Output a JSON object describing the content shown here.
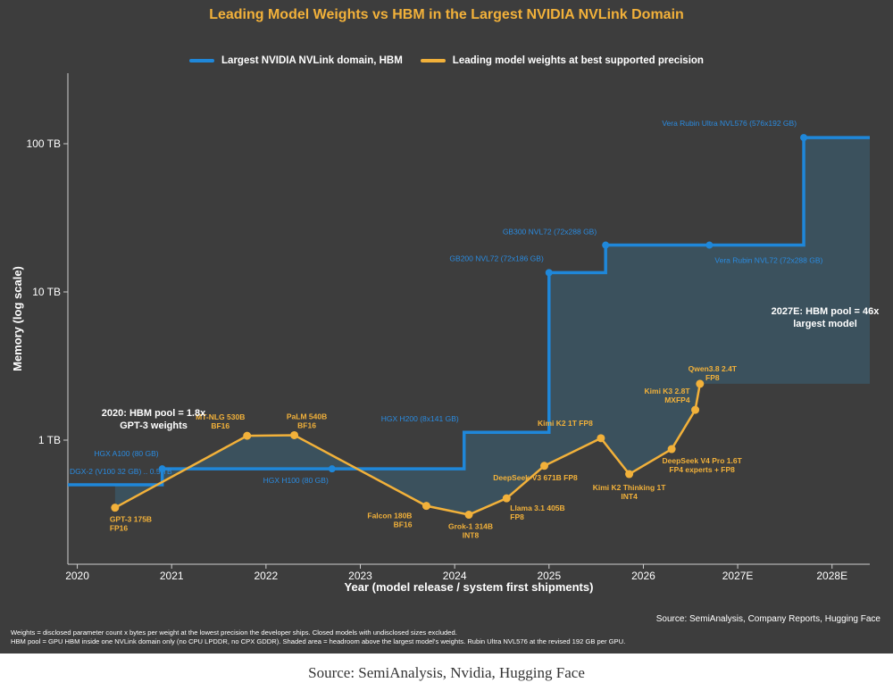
{
  "chart_data": {
    "type": "line",
    "title": "Leading Model Weights vs HBM in the Largest NVIDIA NVLink Domain",
    "xlabel": "Year (model release / system first shipments)",
    "ylabel": "Memory (log scale)",
    "scale": "log",
    "xlim": [
      2019.9,
      2028.4
    ],
    "ylim_tb": [
      0.16,
      300
    ],
    "x_ticks": [
      "2020",
      "2021",
      "2022",
      "2023",
      "2024",
      "2025",
      "2026",
      "2027E",
      "2028E"
    ],
    "y_ticks": [
      {
        "label": "100 TB",
        "value_tb": 100
      },
      {
        "label": "10 TB",
        "value_tb": 10
      },
      {
        "label": "1 TB",
        "value_tb": 1
      }
    ],
    "grid": false,
    "legend_position": "top",
    "series": [
      {
        "name": "Largest NVIDIA NVLink domain, HBM",
        "color": "#1f87d9",
        "type": "step",
        "points": [
          {
            "x": 2019.9,
            "y_tb": 0.5,
            "label": "DGX-2 (V100 32 GB) .. 0.5 TB",
            "marker": false
          },
          {
            "x": 2020.9,
            "y_tb": 0.64,
            "label": "HGX A100 (80 GB)",
            "marker": true
          },
          {
            "x": 2022.7,
            "y_tb": 0.64,
            "label": "HGX H100 (80 GB)",
            "marker": true
          },
          {
            "x": 2024.1,
            "y_tb": 1.13,
            "label": "HGX H200 (8x141 GB)",
            "marker": false
          },
          {
            "x": 2025.0,
            "y_tb": 13.5,
            "label": "GB200 NVL72 (72x186 GB)",
            "marker": true
          },
          {
            "x": 2025.6,
            "y_tb": 20.7,
            "label": "GB300 NVL72 (72x288 GB)",
            "marker": true
          },
          {
            "x": 2026.7,
            "y_tb": 20.7,
            "label": "Vera Rubin NVL72 (72x288 GB)",
            "marker": true
          },
          {
            "x": 2027.7,
            "y_tb": 110,
            "label": "Vera Rubin Ultra NVL576 (576x192 GB)",
            "marker": true
          },
          {
            "x": 2028.4,
            "y_tb": 110,
            "label": "",
            "marker": false
          }
        ]
      },
      {
        "name": "Leading model weights at best supported precision",
        "color": "#f2b13a",
        "type": "line",
        "points": [
          {
            "x": 2020.4,
            "y_tb": 0.35,
            "label": "GPT-3 175B\nFP16"
          },
          {
            "x": 2021.8,
            "y_tb": 1.07,
            "label": "MT-NLG 530B\nBF16"
          },
          {
            "x": 2022.3,
            "y_tb": 1.08,
            "label": "PaLM 540B\nBF16"
          },
          {
            "x": 2023.7,
            "y_tb": 0.36,
            "label": "Falcon 180B\nBF16"
          },
          {
            "x": 2024.15,
            "y_tb": 0.314,
            "label": "Grok-1 314B\nINT8"
          },
          {
            "x": 2024.55,
            "y_tb": 0.405,
            "label": "Llama 3.1 405B\nFP8"
          },
          {
            "x": 2024.95,
            "y_tb": 0.671,
            "label": "DeepSeek-V3 671B FP8"
          },
          {
            "x": 2025.55,
            "y_tb": 1.03,
            "label": "Kimi K2 1T FP8"
          },
          {
            "x": 2025.85,
            "y_tb": 0.59,
            "label": "Kimi K2 Thinking 1T\nINT4"
          },
          {
            "x": 2026.3,
            "y_tb": 0.87,
            "label": "DeepSeek V4 Pro 1.6T\nFP4 experts + FP8"
          },
          {
            "x": 2026.55,
            "y_tb": 1.6,
            "label": "Kimi K3 2.8T\nMXFP4"
          },
          {
            "x": 2026.6,
            "y_tb": 2.4,
            "label": "Qwen3.8 2.4T\nFP8"
          }
        ]
      }
    ],
    "annotations": [
      "2020: HBM pool = 1.8x\nGPT-3 weights",
      "2027E: HBM pool = 46x\nlargest model"
    ]
  },
  "source_right": "Source: SemiAnalysis, Company Reports, Hugging Face",
  "notes": [
    "Weights = disclosed parameter count x bytes per weight at the lowest precision the developer ships. Closed models with undisclosed sizes excluded.",
    "HBM pool = GPU HBM inside one NVLink domain only (no CPU LPDDR, no CPX GDDR). Shaded area = headroom above the largest model's weights. Rubin Ultra NVL576 at the revised 192 GB per GPU."
  ],
  "source_bottom": "Source: SemiAnalysis, Nvidia, Hugging Face",
  "colors": {
    "panel": "#3d3d3d",
    "hbm": "#1f87d9",
    "weights": "#f2b13a",
    "shade": "#3b5563",
    "hbm_label": "#2a8be0"
  }
}
